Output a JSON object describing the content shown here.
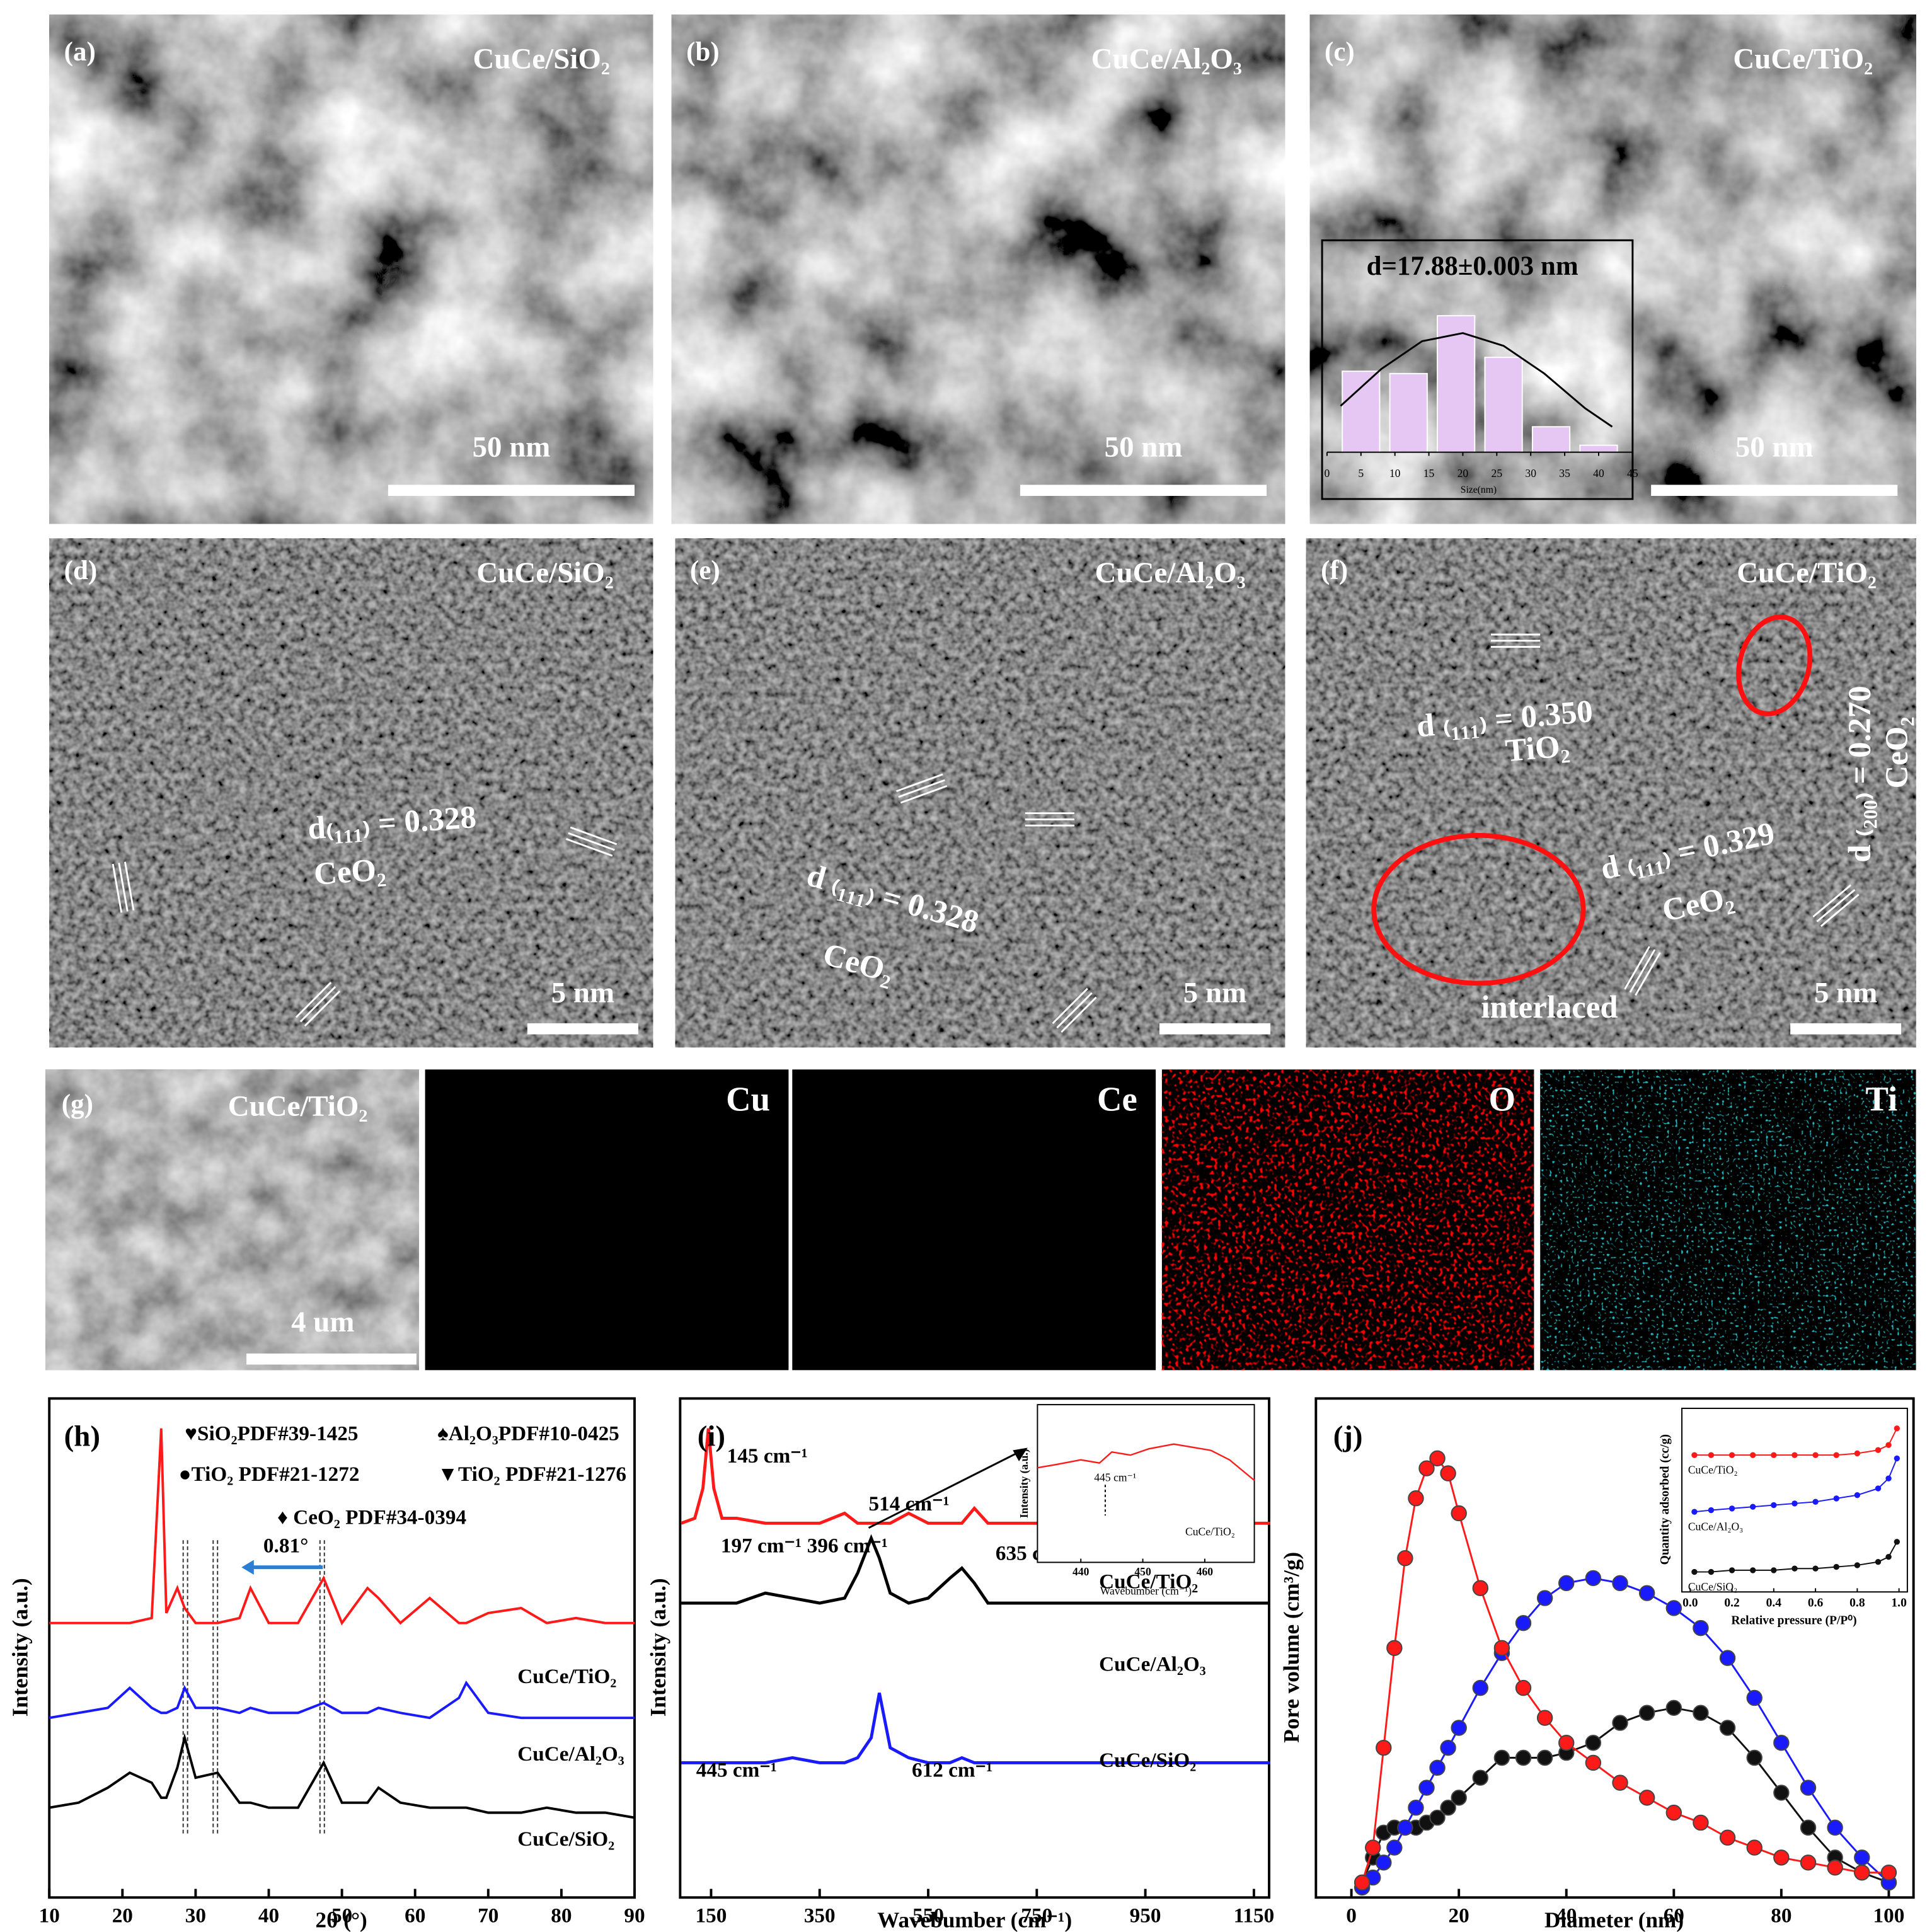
{
  "tem": [
    {
      "label": "(a)",
      "sample": "CuCe/SiO₂",
      "scale": "50 nm"
    },
    {
      "label": "(b)",
      "sample": "CuCe/Al₂O₃",
      "scale": "50 nm"
    },
    {
      "label": "(c)",
      "sample": "CuCe/TiO₂",
      "scale": "50 nm"
    }
  ],
  "hrtem": [
    {
      "label": "(d)",
      "sample": "CuCe/SiO₂",
      "scale": "5 nm",
      "annotations": [
        "d₍₁₁₁₎ = 0.328",
        "CeO₂"
      ]
    },
    {
      "label": "(e)",
      "sample": "CuCe/Al₂O₃",
      "scale": "5 nm",
      "annotations": [
        "d ₍₁₁₁₎ = 0.328",
        "CeO₂"
      ]
    },
    {
      "label": "(f)",
      "sample": "CuCe/TiO₂",
      "scale": "5 nm",
      "annotations": [
        "d ₍₁₁₁₎ = 0.350",
        "TiO₂",
        "d ₍₂₀₀₎ = 0.270",
        "CeO₂",
        "d ₍₁₁₁₎ = 0.329",
        "CeO₂",
        "interlaced"
      ]
    }
  ],
  "eds": {
    "label": "(g)",
    "sample": "CuCe/TiO₂",
    "scale": "4 um",
    "maps": [
      {
        "element": "Cu",
        "color": "#ffffa0"
      },
      {
        "element": "Ce",
        "color": "#ffffff"
      },
      {
        "element": "O",
        "color": "#ff0000"
      },
      {
        "element": "Ti",
        "color": "#20b8c0"
      }
    ]
  },
  "chart_data": [
    {
      "type": "bar",
      "title": "d=17.88±0.003 nm",
      "x_label": "Size(nm)",
      "x": [
        5,
        12,
        19,
        26,
        33,
        40
      ],
      "values": [
        70,
        68,
        118,
        82,
        22,
        6
      ],
      "color": "#e6c6f3",
      "xlim": [
        0,
        45
      ],
      "xticks": [
        0,
        5,
        10,
        15,
        20,
        25,
        30,
        35,
        40,
        45
      ],
      "ylim": [
        0,
        130
      ],
      "fit": {
        "x": [
          2,
          8,
          14,
          20,
          26,
          32,
          38,
          42
        ],
        "values": [
          40,
          72,
          96,
          103,
          92,
          68,
          38,
          22
        ]
      }
    },
    {
      "type": "line",
      "panel_label": "(h)",
      "x_label": "2θ (°)",
      "y_label": "Intensity (a.u.)",
      "annotations": [
        "♥SiO₂PDF#39-1425",
        "♠Al₂O₃PDF#10-0425",
        "●TiO₂ PDF#21-1272",
        "▼TiO₂ PDF#21-1276",
        "♦ CeO₂ PDF#34-0394"
      ],
      "shift": "0.81°",
      "x": [
        10,
        14,
        18,
        21,
        24,
        25.3,
        26,
        27.5,
        28.5,
        30,
        33,
        36,
        37.5,
        40,
        44,
        47.5,
        50,
        53.5,
        55,
        58,
        62,
        66,
        67,
        70,
        74.5,
        78,
        82,
        86,
        90
      ],
      "series": [
        {
          "name": "CuCe/TiO₂",
          "color": "#ff1a1a",
          "values": [
            55,
            55,
            55,
            55,
            56,
            94,
            57,
            62,
            58,
            55,
            55,
            56,
            62,
            55,
            55,
            64,
            55,
            62,
            60,
            55,
            60,
            55,
            55,
            57,
            58,
            55,
            56,
            55,
            55
          ]
        },
        {
          "name": "CuCe/Al₂O₃",
          "color": "#1a1aff",
          "values": [
            36,
            37,
            38,
            42,
            38,
            37,
            37,
            38,
            42,
            38,
            38,
            37,
            38,
            37,
            37,
            39,
            37,
            37,
            38,
            37,
            36,
            40,
            43,
            37,
            36,
            36,
            36,
            36,
            36
          ]
        },
        {
          "name": "CuCe/SiO₂",
          "color": "#000000",
          "values": [
            18,
            19,
            22,
            25,
            23,
            20,
            20,
            26,
            32,
            24,
            25,
            19,
            19,
            18,
            18,
            27,
            19,
            19,
            22,
            19,
            18,
            18,
            18,
            17,
            17,
            18,
            17,
            17,
            16
          ]
        }
      ],
      "xlim": [
        10,
        90
      ],
      "xticks": [
        10,
        20,
        30,
        40,
        50,
        60,
        70,
        80,
        90
      ],
      "ylim": [
        0,
        100
      ]
    },
    {
      "type": "line",
      "panel_label": "(i)",
      "x_label": "Wavebumber (cm⁻¹)",
      "y_label": "Intensity (a.u.)",
      "peak_labels": [
        "145 cm⁻¹",
        "197 cm⁻¹",
        "396 cm⁻¹",
        "514 cm⁻¹",
        "635 cm⁻¹",
        "445 cm⁻¹",
        "612 cm⁻¹"
      ],
      "x": [
        95,
        120,
        135,
        145,
        155,
        170,
        197,
        250,
        300,
        350,
        396,
        420,
        445,
        460,
        480,
        514,
        550,
        590,
        612,
        635,
        660,
        700,
        800,
        950,
        1100,
        1180
      ],
      "series": [
        {
          "name": "CuCe/TiO₂",
          "color": "#ff1a1a",
          "values": [
            75,
            76,
            82,
            94,
            82,
            76,
            76,
            75,
            75,
            75,
            77,
            75,
            75,
            75,
            75,
            77,
            75,
            75,
            75,
            78,
            75,
            75,
            75,
            75,
            75,
            75
          ]
        },
        {
          "name": "CuCe/Al₂O₃",
          "color": "#000000",
          "values": [
            59,
            59,
            59,
            59,
            59,
            59,
            59,
            61,
            60,
            59,
            60,
            65,
            72,
            68,
            61,
            59,
            60,
            64,
            66,
            63,
            59,
            59,
            59,
            59,
            59,
            59
          ]
        },
        {
          "name": "CuCe/SiO₂",
          "color": "#1a1aff",
          "values": [
            27,
            27,
            27,
            27,
            27,
            27,
            27,
            27,
            28,
            27,
            27,
            28,
            32,
            41,
            30,
            28,
            27,
            27,
            28,
            27,
            27,
            27,
            27,
            27,
            27,
            27
          ]
        }
      ],
      "xlim": [
        93,
        1178
      ],
      "xticks": [
        150,
        350,
        550,
        750,
        950,
        1150
      ],
      "ylim": [
        0,
        100
      ],
      "inset": {
        "name": "CuCe/TiO₂",
        "color": "#ff1a1a",
        "x_label": "Wavebumber (cm⁻¹)",
        "y_label": "Intensity (a.u.)",
        "peak_label": "445 cm⁻¹",
        "x": [
          433,
          436,
          440,
          443,
          445,
          448,
          451,
          455,
          458,
          461,
          464,
          468
        ],
        "values": [
          6,
          6.2,
          6.5,
          6.3,
          7,
          6.8,
          7.2,
          7.5,
          7.3,
          7.1,
          6.5,
          5.2
        ],
        "xlim": [
          433,
          468
        ],
        "xticks": [
          440,
          450,
          460
        ],
        "ylim": [
          0,
          10
        ]
      }
    },
    {
      "type": "scatter",
      "panel_label": "(j)",
      "x_label": "Diameter (nm)",
      "y_label": "Pore volume (cm³/g)",
      "x": [
        2,
        4,
        6,
        8,
        10,
        12,
        14,
        16,
        18,
        20,
        24,
        28,
        32,
        36,
        40,
        45,
        50,
        55,
        60,
        65,
        70,
        75,
        80,
        85,
        90,
        95,
        100
      ],
      "series": [
        {
          "name": "CuCe/SiO₂",
          "color": "#111111",
          "values": [
            3,
            8,
            13,
            14,
            14,
            14,
            15,
            16,
            18,
            20,
            24,
            28,
            28,
            28,
            29,
            31,
            35,
            37,
            38,
            37,
            34,
            28,
            21,
            14,
            8,
            5,
            3
          ]
        },
        {
          "name": "CuCe/Al₂O₃",
          "color": "#1a1aff",
          "values": [
            2,
            4,
            7,
            10,
            14,
            18,
            22,
            26,
            30,
            34,
            42,
            49,
            55,
            60,
            63,
            64,
            63,
            61,
            58,
            54,
            48,
            40,
            31,
            22,
            14,
            8,
            3
          ]
        },
        {
          "name": "CuCe/TiO₂",
          "color": "#ff1a1a",
          "values": [
            3,
            10,
            30,
            50,
            68,
            80,
            86,
            88,
            85,
            77,
            62,
            50,
            42,
            36,
            31,
            27,
            23,
            20,
            17,
            15,
            12,
            10,
            8,
            7,
            6,
            5,
            5
          ]
        }
      ],
      "xlim": [
        -6.6,
        104.6
      ],
      "xticks": [
        0,
        20,
        40,
        60,
        80,
        100
      ],
      "ylim": [
        0,
        100
      ],
      "inset": {
        "x_label": "Relative pressure (P/P⁰)",
        "y_label": "Quantity adsorbed (cc/g)",
        "x": [
          0.02,
          0.1,
          0.2,
          0.3,
          0.4,
          0.5,
          0.6,
          0.7,
          0.8,
          0.9,
          0.95,
          0.99
        ],
        "series": [
          {
            "name": "CuCe/TiO₂",
            "color": "#ff1a1a",
            "values": [
              82,
              82,
              82,
              82,
              82,
              82,
              82,
              82,
              83,
              85,
              88,
              98
            ]
          },
          {
            "name": "CuCe/Al₂O₃",
            "color": "#1a1aff",
            "values": [
              48,
              49,
              50,
              51,
              52,
              53,
              54,
              56,
              58,
              62,
              68,
              80
            ]
          },
          {
            "name": "CuCe/SiO₂",
            "color": "#111111",
            "values": [
              12,
              12,
              13,
              13,
              13,
              14,
              14,
              15,
              16,
              18,
              21,
              30
            ]
          }
        ],
        "xlim": [
          -0.04,
          1.04
        ],
        "xticks": [
          {
            "value": 0,
            "label": "0.0"
          },
          0.2,
          0.4,
          0.6,
          0.8,
          {
            "value": 1,
            "label": "1.0"
          }
        ],
        "ylim": [
          0,
          110
        ]
      }
    }
  ]
}
